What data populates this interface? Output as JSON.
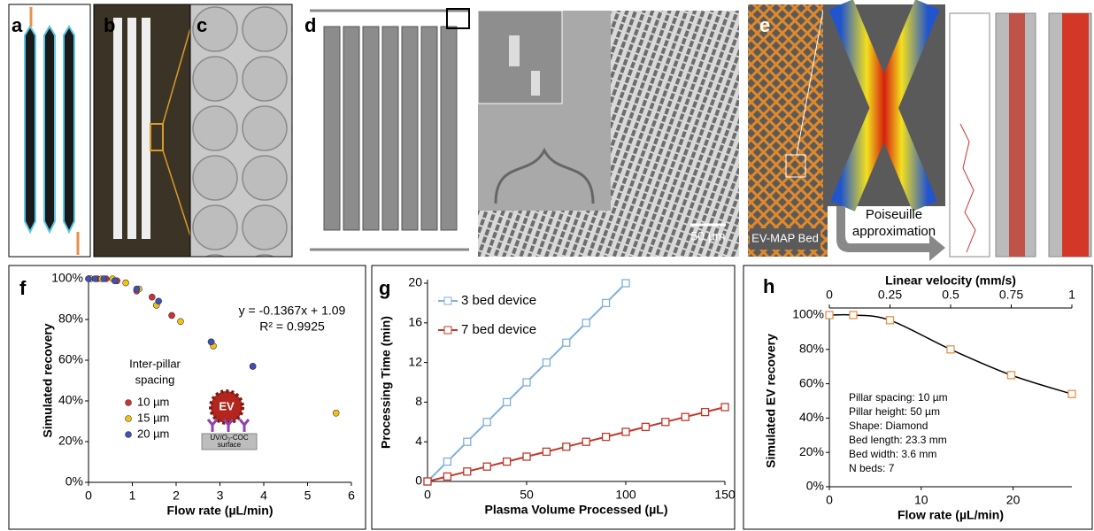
{
  "figure": {
    "panels": [
      "a",
      "b",
      "c",
      "d",
      "e"
    ],
    "scale_bar": "50 µm",
    "bed_label": "EV-MAP Bed",
    "arrow_label": [
      "Poiseuille",
      "approximation"
    ]
  },
  "chart_data": [
    {
      "type": "scatter",
      "panel": "f",
      "x_label": "Flow rate (µL/min)",
      "y_label": "Simulated recovery",
      "xlim": [
        0,
        6
      ],
      "xticks": [
        0,
        1,
        2,
        3,
        4,
        5,
        6
      ],
      "ylim": [
        0,
        100
      ],
      "yticks": [
        {
          "value": 0,
          "label": "0%"
        },
        {
          "value": 20,
          "label": "20%"
        },
        {
          "value": 40,
          "label": "40%"
        },
        {
          "value": 60,
          "label": "60%"
        },
        {
          "value": 80,
          "label": "80%"
        },
        {
          "value": 100,
          "label": "100%"
        }
      ],
      "equation": [
        "y = -0.1367x + 1.09",
        "R² = 0.9925"
      ],
      "legend_title": [
        "Inter-pillar",
        "spacing"
      ],
      "inset": {
        "particle": "EV",
        "surface": [
          "UV/O₃-COC",
          "surface"
        ]
      },
      "series": [
        {
          "name": "10 µm",
          "color": "#d0312d",
          "x": [
            0.02,
            0.2,
            0.4,
            0.65,
            1.1,
            1.45,
            1.9,
            2.8,
            3.75
          ],
          "values": [
            100,
            100,
            100,
            99,
            94,
            91,
            82,
            69,
            57
          ]
        },
        {
          "name": "15 µm",
          "color": "#f4c20d",
          "x": [
            0.05,
            0.3,
            0.55,
            0.85,
            1.15,
            1.55,
            2.1,
            2.85,
            5.65
          ],
          "values": [
            100,
            100,
            100,
            98,
            95,
            87,
            79,
            67,
            34
          ]
        },
        {
          "name": "20 µm",
          "color": "#3f51b5",
          "x": [
            0,
            0.15,
            0.35,
            0.6,
            1.1,
            1.6,
            2.8,
            3.75
          ],
          "values": [
            100,
            100,
            100,
            99,
            95,
            89,
            69,
            57
          ]
        }
      ]
    },
    {
      "type": "line",
      "panel": "g",
      "x_label": "Plasma Volume Processed (µL)",
      "y_label": "Processing Time (min)",
      "xlim": [
        0,
        150
      ],
      "xticks": [
        0,
        50,
        100,
        150
      ],
      "ylim": [
        0,
        20
      ],
      "yticks": [
        0,
        4,
        8,
        12,
        16,
        20
      ],
      "series": [
        {
          "name": "3 bed device",
          "color": "#7fb0dc",
          "x": [
            0,
            10,
            20,
            30,
            40,
            50,
            60,
            70,
            80,
            90,
            100
          ],
          "values": [
            0,
            2,
            4,
            6,
            8,
            10,
            12,
            14,
            16,
            18,
            20
          ]
        },
        {
          "name": "7 bed device",
          "color": "#c0392b",
          "x": [
            0,
            10,
            20,
            30,
            40,
            50,
            60,
            70,
            80,
            90,
            100,
            110,
            120,
            130,
            140,
            150
          ],
          "values": [
            0,
            0.5,
            1,
            1.5,
            2,
            2.5,
            3,
            3.5,
            4,
            4.5,
            5,
            5.5,
            6,
            6.5,
            7,
            7.5
          ]
        }
      ]
    },
    {
      "type": "line",
      "smooth": true,
      "line_color": "#000000",
      "panel": "h",
      "x_label": "Flow rate (µL/min)",
      "y_label": "Simulated EV recovery",
      "x2_label": "Linear velocity (mm/s)",
      "xlim": [
        0,
        26.4
      ],
      "xticks": [
        0,
        10,
        20
      ],
      "x2lim": [
        0,
        1
      ],
      "x2ticks": [
        0,
        0.25,
        0.5,
        0.75,
        1
      ],
      "ylim": [
        0,
        100
      ],
      "yticks": [
        {
          "value": 0,
          "label": "0%"
        },
        {
          "value": 20,
          "label": "20%"
        },
        {
          "value": 40,
          "label": "40%"
        },
        {
          "value": 60,
          "label": "60%"
        },
        {
          "value": 80,
          "label": "80%"
        },
        {
          "value": 100,
          "label": "100%"
        }
      ],
      "annotation": [
        "Pillar spacing: 10 µm",
        "Pillar height: 50 µm",
        "Shape: Diamond",
        "Bed length: 23.3 mm",
        "Bed width: 3.6 mm",
        "N beds: 7"
      ],
      "series": [
        {
          "name": null,
          "color": "#e8914a",
          "x": [
            0,
            2.6,
            6.6,
            13.2,
            19.8,
            26.4
          ],
          "values": [
            100,
            100,
            97,
            80,
            65,
            54
          ]
        }
      ]
    }
  ]
}
